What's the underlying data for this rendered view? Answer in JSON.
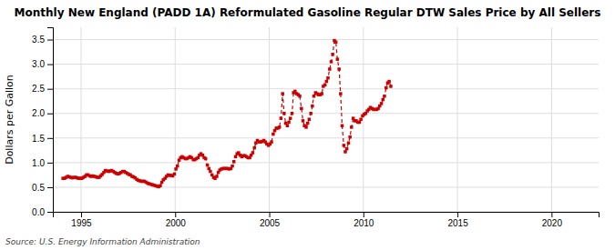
{
  "chart_data": {
    "type": "line",
    "title": "Monthly New England (PADD 1A) Reformulated Gasoline Regular DTW Sales Price by All Sellers",
    "ylabel": "Dollars per Gallon",
    "source": "Source: U.S. Energy Information Administration",
    "color": "#cc0000",
    "marker": "square",
    "line_style": "dashed",
    "grid": true,
    "xlim": [
      1993.5,
      2022.5
    ],
    "xticks": [
      1995,
      2000,
      2005,
      2010,
      2015,
      2020
    ],
    "ylim": [
      0.0,
      3.75
    ],
    "yticks": [
      {
        "value": 0.0,
        "label": "0.0"
      },
      0.5,
      {
        "value": 1.0,
        "label": "1.0"
      },
      1.5,
      {
        "value": 2.0,
        "label": "2.0"
      },
      2.5,
      {
        "value": 3.0,
        "label": "3.0"
      },
      3.5
    ],
    "x": [
      1994.04,
      1994.12,
      1994.21,
      1994.29,
      1994.37,
      1994.46,
      1994.54,
      1994.62,
      1994.71,
      1994.79,
      1994.87,
      1994.96,
      1995.04,
      1995.12,
      1995.21,
      1995.29,
      1995.37,
      1995.46,
      1995.54,
      1995.62,
      1995.71,
      1995.79,
      1995.87,
      1995.96,
      1996.04,
      1996.12,
      1996.21,
      1996.29,
      1996.37,
      1996.46,
      1996.54,
      1996.62,
      1996.71,
      1996.79,
      1996.87,
      1996.96,
      1997.04,
      1997.12,
      1997.21,
      1997.29,
      1997.37,
      1997.46,
      1997.54,
      1997.62,
      1997.71,
      1997.79,
      1997.87,
      1997.96,
      1998.04,
      1998.12,
      1998.21,
      1998.29,
      1998.37,
      1998.46,
      1998.54,
      1998.62,
      1998.71,
      1998.79,
      1998.87,
      1998.96,
      1999.04,
      1999.12,
      1999.21,
      1999.29,
      1999.37,
      1999.46,
      1999.54,
      1999.62,
      1999.71,
      1999.79,
      1999.87,
      1999.96,
      2000.04,
      2000.12,
      2000.21,
      2000.29,
      2000.37,
      2000.46,
      2000.54,
      2000.62,
      2000.71,
      2000.79,
      2000.87,
      2000.96,
      2001.04,
      2001.12,
      2001.21,
      2001.29,
      2001.37,
      2001.46,
      2001.54,
      2001.62,
      2001.71,
      2001.79,
      2001.87,
      2001.96,
      2002.04,
      2002.12,
      2002.21,
      2002.29,
      2002.37,
      2002.46,
      2002.54,
      2002.62,
      2002.71,
      2002.79,
      2002.87,
      2002.96,
      2003.04,
      2003.12,
      2003.21,
      2003.29,
      2003.37,
      2003.46,
      2003.54,
      2003.62,
      2003.71,
      2003.79,
      2003.87,
      2003.96,
      2004.04,
      2004.12,
      2004.21,
      2004.29,
      2004.37,
      2004.46,
      2004.54,
      2004.62,
      2004.71,
      2004.79,
      2004.87,
      2004.96,
      2005.04,
      2005.12,
      2005.21,
      2005.29,
      2005.37,
      2005.46,
      2005.54,
      2005.62,
      2005.71,
      2005.79,
      2005.87,
      2005.96,
      2006.04,
      2006.12,
      2006.21,
      2006.29,
      2006.37,
      2006.46,
      2006.54,
      2006.62,
      2006.71,
      2006.79,
      2006.87,
      2006.96,
      2007.04,
      2007.12,
      2007.21,
      2007.29,
      2007.37,
      2007.46,
      2007.54,
      2007.62,
      2007.71,
      2007.79,
      2007.87,
      2007.96,
      2008.04,
      2008.12,
      2008.21,
      2008.29,
      2008.37,
      2008.46,
      2008.54,
      2008.62,
      2008.71,
      2008.79,
      2008.87,
      2008.96,
      2009.04,
      2009.12,
      2009.21,
      2009.29,
      2009.37,
      2009.46,
      2009.54,
      2009.62,
      2009.71,
      2009.79,
      2009.87,
      2009.96,
      2010.04,
      2010.12,
      2010.21,
      2010.29,
      2010.37,
      2010.46,
      2010.54,
      2010.62,
      2010.71,
      2010.79,
      2010.87,
      2010.96,
      2011.04,
      2011.12,
      2011.21,
      2011.29,
      2011.37,
      2011.46
    ],
    "values": [
      0.68,
      0.68,
      0.7,
      0.72,
      0.71,
      0.7,
      0.69,
      0.7,
      0.7,
      0.69,
      0.68,
      0.68,
      0.68,
      0.7,
      0.72,
      0.75,
      0.75,
      0.73,
      0.72,
      0.73,
      0.72,
      0.71,
      0.7,
      0.7,
      0.73,
      0.76,
      0.8,
      0.84,
      0.83,
      0.82,
      0.83,
      0.84,
      0.82,
      0.8,
      0.78,
      0.77,
      0.78,
      0.8,
      0.82,
      0.82,
      0.8,
      0.78,
      0.76,
      0.75,
      0.72,
      0.71,
      0.69,
      0.66,
      0.64,
      0.63,
      0.62,
      0.62,
      0.62,
      0.6,
      0.58,
      0.57,
      0.56,
      0.55,
      0.54,
      0.53,
      0.52,
      0.51,
      0.53,
      0.6,
      0.65,
      0.68,
      0.72,
      0.75,
      0.74,
      0.74,
      0.73,
      0.77,
      0.87,
      0.93,
      1.05,
      1.1,
      1.12,
      1.1,
      1.08,
      1.08,
      1.1,
      1.12,
      1.1,
      1.06,
      1.06,
      1.08,
      1.1,
      1.15,
      1.18,
      1.15,
      1.1,
      1.08,
      0.95,
      0.88,
      0.82,
      0.75,
      0.7,
      0.68,
      0.72,
      0.8,
      0.85,
      0.87,
      0.88,
      0.88,
      0.88,
      0.88,
      0.87,
      0.88,
      0.93,
      1.02,
      1.12,
      1.18,
      1.2,
      1.15,
      1.12,
      1.14,
      1.14,
      1.12,
      1.1,
      1.1,
      1.15,
      1.2,
      1.3,
      1.4,
      1.45,
      1.42,
      1.42,
      1.43,
      1.45,
      1.42,
      1.38,
      1.35,
      1.38,
      1.42,
      1.58,
      1.65,
      1.7,
      1.7,
      1.72,
      1.9,
      2.4,
      2.0,
      1.8,
      1.75,
      1.82,
      1.9,
      2.0,
      2.42,
      2.45,
      2.4,
      2.38,
      2.35,
      2.1,
      1.85,
      1.75,
      1.72,
      1.8,
      1.88,
      2.0,
      2.15,
      2.35,
      2.42,
      2.4,
      2.38,
      2.38,
      2.4,
      2.55,
      2.58,
      2.65,
      2.72,
      2.9,
      3.05,
      3.2,
      3.48,
      3.45,
      3.1,
      2.9,
      2.4,
      1.75,
      1.35,
      1.22,
      1.28,
      1.4,
      1.52,
      1.72,
      1.9,
      1.85,
      1.85,
      1.82,
      1.82,
      1.88,
      1.95,
      1.98,
      2.0,
      2.05,
      2.08,
      2.12,
      2.1,
      2.08,
      2.08,
      2.08,
      2.1,
      2.15,
      2.2,
      2.28,
      2.35,
      2.52,
      2.62,
      2.65,
      2.55
    ]
  }
}
